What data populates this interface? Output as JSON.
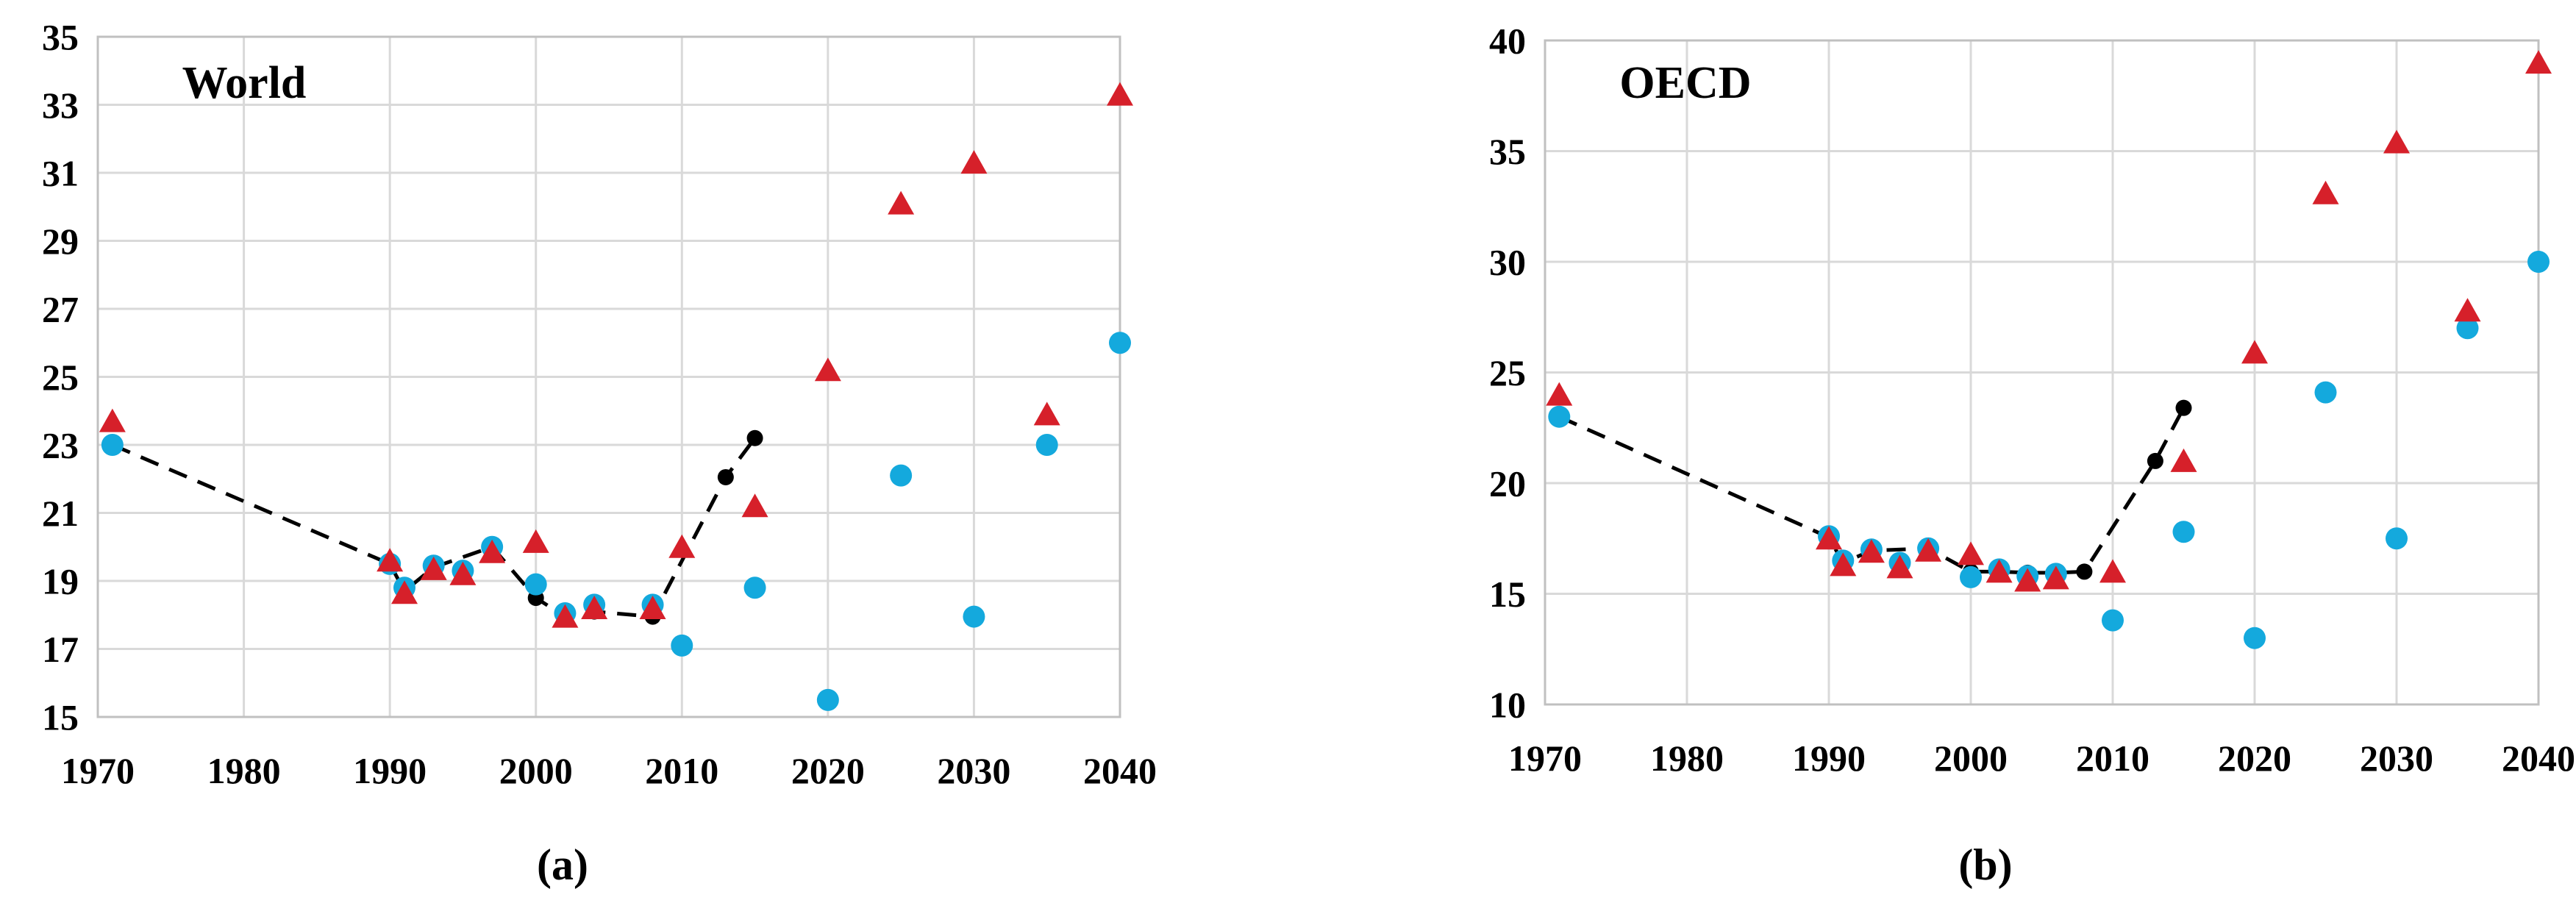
{
  "figure": {
    "description": "Two-panel scatter chart comparing historical data (black dashed line with dots) and two projection series (red triangles, blue circles) from 1970 to 2040",
    "background_color": "#ffffff",
    "grid_color": "#d9d9d9",
    "border_color": "#c0c0c0"
  },
  "chart_data": [
    {
      "type": "scatter",
      "panel_label": "(a)",
      "title": "World",
      "xlabel": "",
      "ylabel": "",
      "xlim": [
        1970,
        2040
      ],
      "ylim": [
        15,
        35
      ],
      "xticks": [
        1970,
        1980,
        1990,
        2000,
        2010,
        2020,
        2030,
        2040
      ],
      "yticks": [
        15,
        17,
        19,
        21,
        23,
        25,
        27,
        29,
        31,
        33,
        35
      ],
      "grid": true,
      "legend": "none",
      "series": [
        {
          "name": "historical-black-dashed",
          "marker": "dot",
          "color": "#000000",
          "linestyle": "dashed",
          "points": [
            [
              1971,
              23.0
            ],
            [
              1990,
              19.5
            ],
            [
              1991,
              18.7
            ],
            [
              1993,
              19.4
            ],
            [
              1997,
              20.0
            ],
            [
              2000,
              18.5
            ],
            [
              2002,
              17.95
            ],
            [
              2004,
              18.1
            ],
            [
              2008,
              17.95
            ],
            [
              2013,
              22.05
            ],
            [
              2015,
              23.2
            ]
          ]
        },
        {
          "name": "blue-circle-scenario",
          "marker": "circle",
          "color": "#14a9dd",
          "linestyle": "none",
          "points": [
            [
              1971,
              23.0
            ],
            [
              1990,
              19.5
            ],
            [
              1991,
              18.8
            ],
            [
              1993,
              19.45
            ],
            [
              1995,
              19.3
            ],
            [
              1997,
              20.0
            ],
            [
              2000,
              18.9
            ],
            [
              2002,
              18.05
            ],
            [
              2004,
              18.3
            ],
            [
              2008,
              18.3
            ],
            [
              2010,
              17.1
            ],
            [
              2015,
              18.8
            ],
            [
              2020,
              15.5
            ],
            [
              2025,
              22.1
            ],
            [
              2030,
              17.95
            ],
            [
              2035,
              23.0
            ],
            [
              2040,
              26.0
            ]
          ]
        },
        {
          "name": "red-triangle-scenario",
          "marker": "triangle",
          "color": "#d6202a",
          "linestyle": "none",
          "points": [
            [
              1971,
              23.7
            ],
            [
              1990,
              19.6
            ],
            [
              1991,
              18.65
            ],
            [
              1993,
              19.35
            ],
            [
              1995,
              19.2
            ],
            [
              1997,
              19.85
            ],
            [
              2000,
              20.15
            ],
            [
              2002,
              17.95
            ],
            [
              2004,
              18.2
            ],
            [
              2008,
              18.2
            ],
            [
              2010,
              20.0
            ],
            [
              2015,
              21.2
            ],
            [
              2020,
              25.2
            ],
            [
              2025,
              30.1
            ],
            [
              2030,
              31.3
            ],
            [
              2035,
              23.9
            ],
            [
              2040,
              33.3
            ]
          ]
        }
      ]
    },
    {
      "type": "scatter",
      "panel_label": "(b)",
      "title": "OECD",
      "xlabel": "",
      "ylabel": "",
      "xlim": [
        1970,
        2040
      ],
      "ylim": [
        10,
        40
      ],
      "xticks": [
        1970,
        1980,
        1990,
        2000,
        2010,
        2020,
        2030,
        2040
      ],
      "yticks": [
        10,
        15,
        20,
        25,
        30,
        35,
        40
      ],
      "grid": true,
      "legend": "none",
      "series": [
        {
          "name": "historical-black-dashed",
          "marker": "dot",
          "color": "#000000",
          "linestyle": "dashed",
          "points": [
            [
              1971,
              23.0
            ],
            [
              1990,
              17.55
            ],
            [
              1991,
              16.4
            ],
            [
              1993,
              16.95
            ],
            [
              1997,
              17.05
            ],
            [
              2000,
              16.0
            ],
            [
              2002,
              16.0
            ],
            [
              2004,
              15.95
            ],
            [
              2006,
              15.95
            ],
            [
              2008,
              16.0
            ],
            [
              2013,
              21.0
            ],
            [
              2015,
              23.4
            ]
          ]
        },
        {
          "name": "blue-circle-scenario",
          "marker": "circle",
          "color": "#14a9dd",
          "linestyle": "none",
          "points": [
            [
              1971,
              23.0
            ],
            [
              1990,
              17.6
            ],
            [
              1991,
              16.5
            ],
            [
              1993,
              17.0
            ],
            [
              1995,
              16.4
            ],
            [
              1997,
              17.05
            ],
            [
              2000,
              15.75
            ],
            [
              2002,
              16.1
            ],
            [
              2004,
              15.8
            ],
            [
              2006,
              15.9
            ],
            [
              2010,
              13.8
            ],
            [
              2015,
              17.8
            ],
            [
              2020,
              13.0
            ],
            [
              2025,
              24.1
            ],
            [
              2030,
              17.5
            ],
            [
              2035,
              27.0
            ],
            [
              2040,
              30.0
            ]
          ]
        },
        {
          "name": "red-triangle-scenario",
          "marker": "triangle",
          "color": "#d6202a",
          "linestyle": "none",
          "points": [
            [
              1971,
              24.0
            ],
            [
              1990,
              17.5
            ],
            [
              1991,
              16.3
            ],
            [
              1993,
              16.9
            ],
            [
              1995,
              16.2
            ],
            [
              1997,
              16.95
            ],
            [
              2000,
              16.8
            ],
            [
              2002,
              16.0
            ],
            [
              2004,
              15.6
            ],
            [
              2006,
              15.7
            ],
            [
              2010,
              16.0
            ],
            [
              2015,
              21.0
            ],
            [
              2020,
              25.9
            ],
            [
              2025,
              33.1
            ],
            [
              2030,
              35.4
            ],
            [
              2035,
              27.8
            ],
            [
              2040,
              39.0
            ]
          ]
        }
      ]
    }
  ]
}
